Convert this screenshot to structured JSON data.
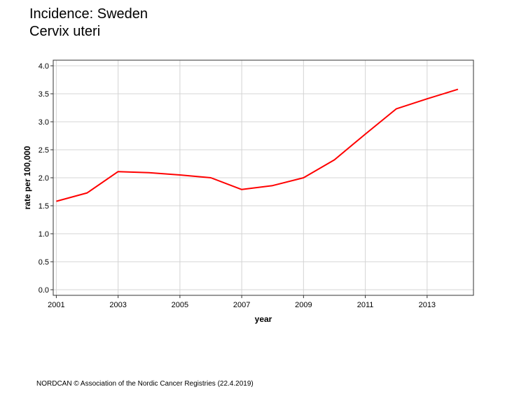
{
  "header": {
    "title": "Incidence: Sweden",
    "subtitle": "Cervix uteri"
  },
  "footer": {
    "text": "NORDCAN © Association of the Nordic Cancer Registries (22.4.2019)"
  },
  "chart_data": {
    "type": "line",
    "title": "Incidence: Sweden",
    "subtitle": "Cervix uteri",
    "xlabel": "year",
    "ylabel": "rate per 100,000",
    "xlim": [
      2000.9,
      2014.5
    ],
    "ylim": [
      -0.1,
      4.1
    ],
    "x_ticks": [
      2001,
      2003,
      2005,
      2007,
      2009,
      2011,
      2013
    ],
    "y_ticks": [
      0.0,
      0.5,
      1.0,
      1.5,
      2.0,
      2.5,
      3.0,
      3.5,
      4.0
    ],
    "y_tick_labels": [
      "0.0",
      "0.5",
      "1.0",
      "1.5",
      "2.0",
      "2.5",
      "3.0",
      "3.5",
      "4.0"
    ],
    "grid": true,
    "legend": "none",
    "series": [
      {
        "color": "#ff0000",
        "x": [
          2001,
          2002,
          2003,
          2004,
          2005,
          2006,
          2007,
          2008,
          2009,
          2010,
          2011,
          2012,
          2013,
          2014
        ],
        "y": [
          1.58,
          1.73,
          2.11,
          2.09,
          2.05,
          2.0,
          1.79,
          1.86,
          2.0,
          2.32,
          2.78,
          3.23,
          3.41,
          3.58
        ]
      }
    ]
  }
}
